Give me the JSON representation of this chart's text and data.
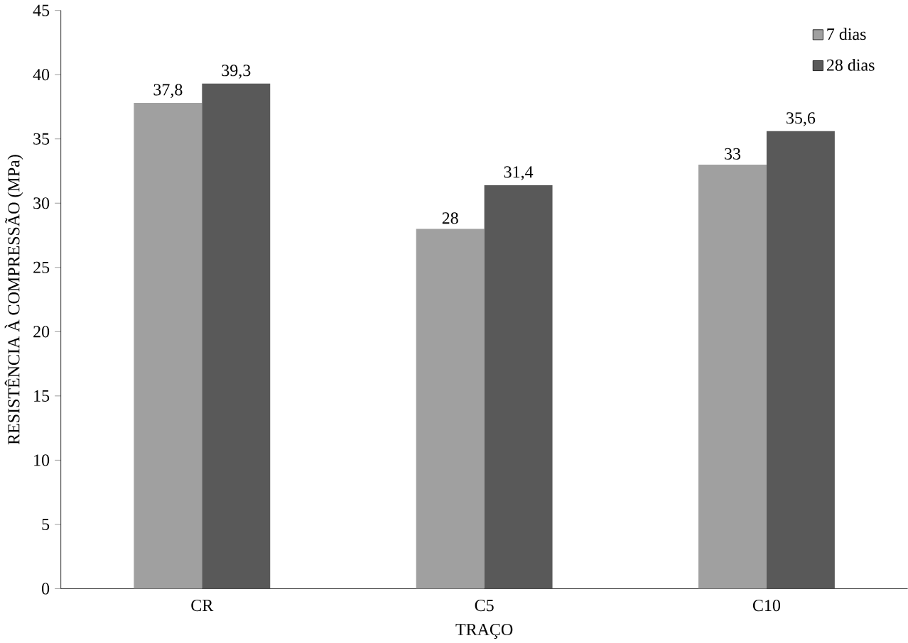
{
  "chart_data": {
    "type": "bar",
    "xlabel": "TRAÇO",
    "ylabel": "RESISTÊNCIA À COMPRESSÃO (MPa)",
    "categories": [
      "CR",
      "C5",
      "C10"
    ],
    "series": [
      {
        "name": "7 dias",
        "color": "#a0a0a0",
        "values": [
          37.8,
          28,
          33
        ],
        "value_labels": [
          "37,8",
          "28",
          "33"
        ]
      },
      {
        "name": "28 dias",
        "color": "#595959",
        "values": [
          39.3,
          31.4,
          35.6
        ],
        "value_labels": [
          "39,3",
          "31,4",
          "35,6"
        ]
      }
    ],
    "ylim": [
      0,
      45
    ],
    "yticks": [
      0,
      5,
      10,
      15,
      20,
      25,
      30,
      35,
      40,
      45
    ],
    "grid": false,
    "legend": "top right"
  }
}
